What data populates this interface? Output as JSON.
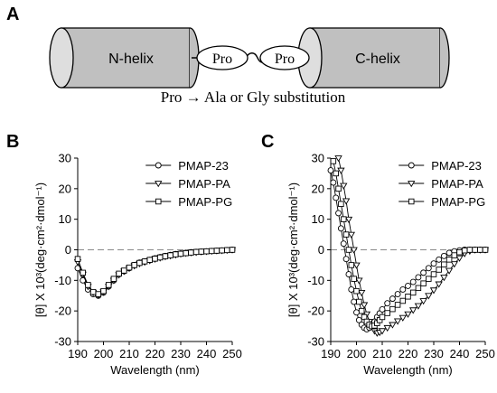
{
  "panels": {
    "a": "A",
    "b": "B",
    "c": "C"
  },
  "diagram": {
    "n_helix": "N-helix",
    "c_helix": "C-helix",
    "pro_left": "Pro",
    "pro_right": "Pro",
    "caption": "Pro → Ala or Gly substitution"
  },
  "colors": {
    "cylinder": "#c0c0c0",
    "cylinder_cap": "#dedede",
    "zero_line": "#8a8a8a"
  },
  "chart_data": [
    {
      "type": "line",
      "panel": "B",
      "xlabel": "Wavelength (nm)",
      "ylabel": "[θ] X 10³(deg·cm²·dmol⁻¹)",
      "xlim": [
        190,
        250
      ],
      "ylim": [
        -30,
        30
      ],
      "xticks": [
        "190",
        "200",
        "210",
        "220",
        "230",
        "240",
        "250"
      ],
      "yticks": [
        "30",
        "20",
        "10",
        "0",
        "-10",
        "-20",
        "-30"
      ],
      "legend_position": "top-right",
      "zero_line": true,
      "series": [
        {
          "name": "PMAP-23",
          "marker": "circle",
          "x": [
            190,
            192,
            194,
            196,
            198,
            200,
            202,
            204,
            206,
            208,
            210,
            212,
            214,
            216,
            218,
            220,
            222,
            224,
            226,
            228,
            230,
            232,
            234,
            236,
            238,
            240,
            242,
            244,
            246,
            248,
            250
          ],
          "y": [
            -6,
            -10,
            -13,
            -14.5,
            -15,
            -14,
            -12,
            -10,
            -8,
            -7,
            -6,
            -5,
            -4.2,
            -3.8,
            -3.3,
            -2.8,
            -2.4,
            -2,
            -1.7,
            -1.4,
            -1.2,
            -1,
            -0.8,
            -0.7,
            -0.6,
            -0.5,
            -0.4,
            -0.3,
            -0.2,
            -0.1,
            0
          ]
        },
        {
          "name": "PMAP-PA",
          "marker": "triangle-down",
          "x": [
            190,
            192,
            194,
            196,
            198,
            200,
            202,
            204,
            206,
            208,
            210,
            212,
            214,
            216,
            218,
            220,
            222,
            224,
            226,
            228,
            230,
            232,
            234,
            236,
            238,
            240,
            242,
            244,
            246,
            248,
            250
          ],
          "y": [
            -4,
            -8,
            -12,
            -14,
            -14.8,
            -13.8,
            -12,
            -10,
            -8.2,
            -7,
            -6,
            -5.2,
            -4.5,
            -4,
            -3.5,
            -3,
            -2.6,
            -2.2,
            -1.9,
            -1.6,
            -1.3,
            -1.1,
            -0.9,
            -0.8,
            -0.6,
            -0.5,
            -0.4,
            -0.3,
            -0.2,
            -0.1,
            0
          ]
        },
        {
          "name": "PMAP-PG",
          "marker": "square",
          "x": [
            190,
            192,
            194,
            196,
            198,
            200,
            202,
            204,
            206,
            208,
            210,
            212,
            214,
            216,
            218,
            220,
            222,
            224,
            226,
            228,
            230,
            232,
            234,
            236,
            238,
            240,
            242,
            244,
            246,
            248,
            250
          ],
          "y": [
            -3,
            -7.5,
            -11.5,
            -13.8,
            -14.5,
            -13.5,
            -11.5,
            -9.5,
            -7.8,
            -6.8,
            -5.8,
            -5,
            -4.3,
            -3.8,
            -3.3,
            -2.9,
            -2.5,
            -2.1,
            -1.8,
            -1.5,
            -1.3,
            -1.1,
            -0.9,
            -0.7,
            -0.6,
            -0.5,
            -0.4,
            -0.3,
            -0.2,
            -0.1,
            0
          ]
        }
      ]
    },
    {
      "type": "line",
      "panel": "C",
      "xlabel": "Wavelength (nm)",
      "ylabel": "[θ] X 10³(deg·cm²·dmol⁻¹)",
      "xlim": [
        190,
        250
      ],
      "ylim": [
        -30,
        30
      ],
      "xticks": [
        "190",
        "200",
        "210",
        "220",
        "230",
        "240",
        "250"
      ],
      "yticks": [
        "30",
        "20",
        "10",
        "0",
        "-10",
        "-20",
        "-30"
      ],
      "legend_position": "top-right",
      "zero_line": true,
      "series": [
        {
          "name": "PMAP-23",
          "marker": "circle",
          "x": [
            190,
            191,
            192,
            193,
            194,
            195,
            196,
            197,
            198,
            199,
            200,
            201,
            202,
            203,
            204,
            205,
            206,
            207,
            208,
            209,
            210,
            212,
            214,
            216,
            218,
            220,
            222,
            224,
            226,
            228,
            230,
            232,
            234,
            236,
            238,
            240,
            242,
            244,
            246,
            248,
            250
          ],
          "y": [
            26,
            22,
            17,
            12,
            7,
            2,
            -3,
            -8,
            -13,
            -17,
            -20.5,
            -23,
            -24.5,
            -25.5,
            -26,
            -25.5,
            -24.5,
            -23.5,
            -22,
            -20.8,
            -19.5,
            -17.5,
            -16,
            -14.5,
            -13,
            -11.8,
            -10.5,
            -9,
            -7.5,
            -6,
            -4.5,
            -3.2,
            -2,
            -1,
            -0.5,
            -0.2,
            0,
            0,
            0,
            0,
            0
          ]
        },
        {
          "name": "PMAP-PA",
          "marker": "triangle-down",
          "x": [
            193,
            194,
            195,
            196,
            197,
            198,
            199,
            200,
            201,
            202,
            203,
            204,
            205,
            206,
            207,
            208,
            209,
            210,
            212,
            214,
            216,
            218,
            220,
            222,
            224,
            226,
            228,
            230,
            232,
            234,
            236,
            238,
            240,
            242,
            244,
            246,
            248,
            250
          ],
          "y": [
            30,
            26,
            21,
            16,
            10,
            5,
            0,
            -5,
            -10,
            -14,
            -18,
            -21,
            -23.5,
            -25,
            -26.5,
            -27.2,
            -27,
            -26.5,
            -25.5,
            -24.5,
            -23.3,
            -22.2,
            -21,
            -19.7,
            -18.3,
            -16.7,
            -15,
            -13.2,
            -11.2,
            -9,
            -6.8,
            -4.6,
            -2.7,
            -1.2,
            -0.4,
            0,
            0,
            0
          ]
        },
        {
          "name": "PMAP-PG",
          "marker": "square",
          "x": [
            191,
            192,
            193,
            194,
            195,
            196,
            197,
            198,
            199,
            200,
            201,
            202,
            203,
            204,
            205,
            206,
            207,
            208,
            209,
            210,
            212,
            214,
            216,
            218,
            220,
            222,
            224,
            226,
            228,
            230,
            232,
            234,
            236,
            238,
            240,
            242,
            244,
            246,
            248,
            250
          ],
          "y": [
            29,
            25,
            20,
            15,
            10,
            5,
            0,
            -5,
            -9.5,
            -13.5,
            -17,
            -20,
            -22,
            -23.5,
            -24.5,
            -25,
            -24.8,
            -24,
            -23,
            -22,
            -20.7,
            -19.4,
            -18,
            -16.7,
            -15.3,
            -14,
            -12.5,
            -11,
            -9.5,
            -8,
            -6.5,
            -4.8,
            -3.2,
            -1.8,
            -0.8,
            -0.2,
            0,
            0,
            0,
            0
          ]
        }
      ]
    }
  ]
}
